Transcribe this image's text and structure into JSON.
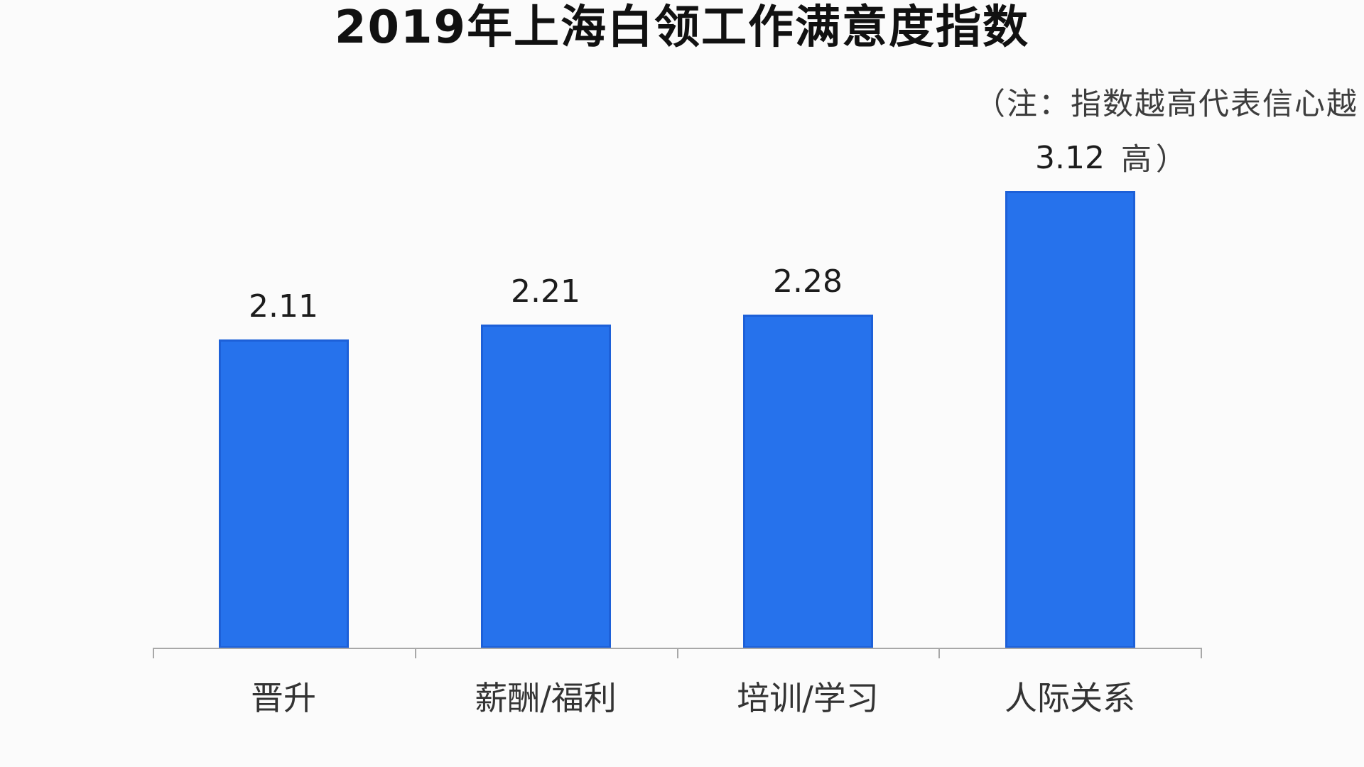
{
  "chart": {
    "title": "2019年上海白领工作满意度指数",
    "note_line1": "（注：指数越高代表信心越",
    "note_line2": "高）"
  },
  "chart_data": {
    "type": "bar",
    "title": "2019年上海白领工作满意度指数",
    "note": "（注：指数越高代表信心越高）",
    "categories": [
      "晋升",
      "薪酬/福利",
      "培训/学习",
      "人际关系"
    ],
    "values": [
      2.11,
      2.21,
      2.28,
      3.12
    ],
    "value_labels": [
      "2.11",
      "2.21",
      "2.28",
      "3.12"
    ],
    "xlabel": "",
    "ylabel": "",
    "ylim": [
      0,
      3.5
    ],
    "grid": false,
    "legend": false,
    "bar_color": "#2672ec",
    "bar_border_color": "#1d60d8",
    "axis_color": "#a8a8a8",
    "background_color": "#fbfbfb",
    "title_color": "#111111",
    "note_color": "#3d3d3d",
    "label_color": "#1c1c1c"
  }
}
